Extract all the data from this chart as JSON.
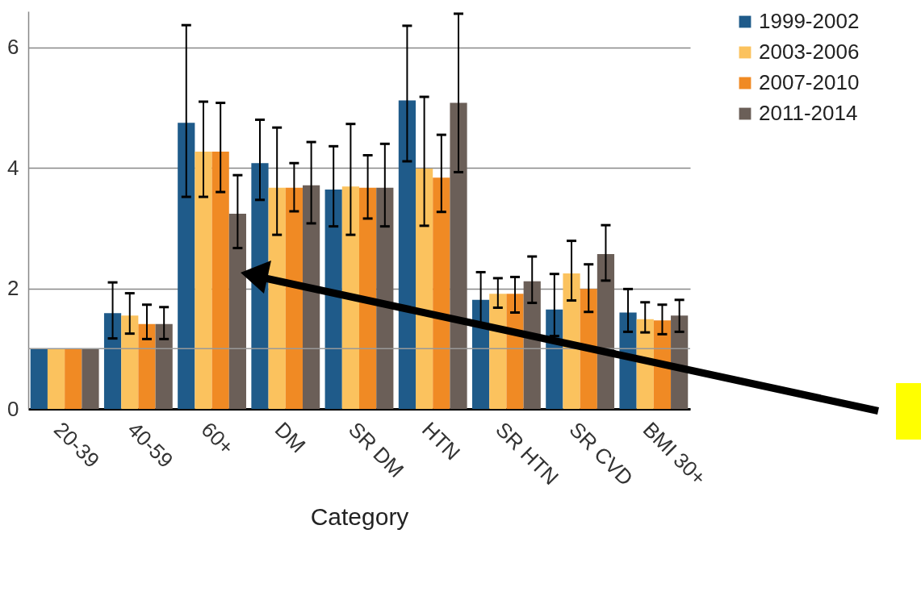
{
  "chart_data": {
    "type": "bar",
    "xlabel": "Category",
    "categories": [
      "20-39",
      "40-59",
      "60+",
      "DM",
      "SR DM",
      "HTN",
      "SR HTN",
      "SR CVD",
      "BMI 30+"
    ],
    "series": [
      {
        "name": "1999-2002",
        "color": "#1f5b8a",
        "values": [
          1,
          1.59,
          4.75,
          4.08,
          3.64,
          5.12,
          1.81,
          1.65,
          1.6
        ],
        "errors": [
          null,
          [
            1.17,
            2.1
          ],
          [
            3.52,
            6.37
          ],
          [
            3.47,
            4.8
          ],
          [
            3.03,
            4.36
          ],
          [
            4.11,
            6.36
          ],
          [
            1.41,
            2.27
          ],
          [
            1.21,
            2.24
          ],
          [
            1.28,
            1.99
          ]
        ]
      },
      {
        "name": "2003-2006",
        "color": "#fbc25e",
        "values": [
          1,
          1.55,
          4.27,
          3.67,
          3.69,
          3.99,
          1.91,
          2.25,
          1.49
        ],
        "errors": [
          null,
          [
            1.25,
            1.92
          ],
          [
            3.52,
            5.1
          ],
          [
            2.89,
            4.67
          ],
          [
            2.89,
            4.73
          ],
          [
            3.04,
            5.18
          ],
          [
            1.68,
            2.17
          ],
          [
            1.8,
            2.79
          ],
          [
            1.27,
            1.77
          ]
        ]
      },
      {
        "name": "2007-2010",
        "color": "#f08a24",
        "values": [
          1,
          1.41,
          4.27,
          3.67,
          3.67,
          3.84,
          1.91,
          1.99,
          1.47
        ],
        "errors": [
          null,
          [
            1.16,
            1.73
          ],
          [
            3.6,
            5.08
          ],
          [
            3.28,
            4.08
          ],
          [
            3.16,
            4.21
          ],
          [
            3.27,
            4.55
          ],
          [
            1.6,
            2.19
          ],
          [
            1.61,
            2.4
          ],
          [
            1.24,
            1.73
          ]
        ]
      },
      {
        "name": "2011-2014",
        "color": "#6b5f58",
        "values": [
          1,
          1.41,
          3.24,
          3.71,
          3.67,
          5.08,
          2.12,
          2.57,
          1.55
        ],
        "errors": [
          null,
          [
            1.16,
            1.69
          ],
          [
            2.67,
            3.88
          ],
          [
            3.08,
            4.43
          ],
          [
            3.03,
            4.4
          ],
          [
            3.93,
            6.56
          ],
          [
            1.76,
            2.53
          ],
          [
            2.13,
            3.05
          ],
          [
            1.28,
            1.81
          ]
        ]
      }
    ],
    "ylim": [
      0,
      6.6
    ],
    "yticks": [
      0,
      2,
      4,
      6
    ],
    "grid": "y",
    "legend": "top right",
    "ref_lines": [
      {
        "axis": "y",
        "value": 1,
        "label": null,
        "color": "#999999"
      }
    ]
  }
}
